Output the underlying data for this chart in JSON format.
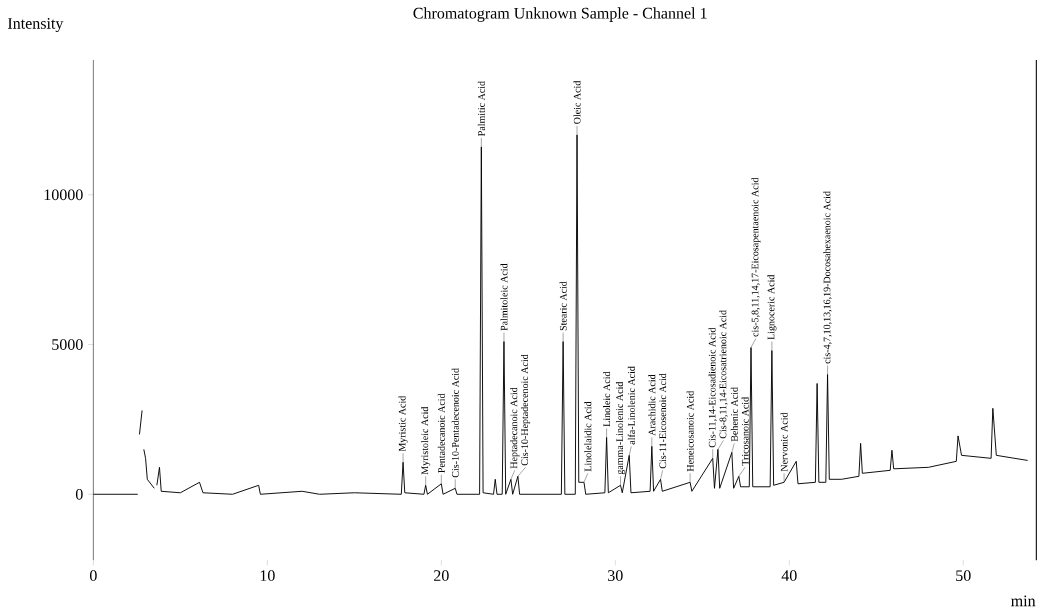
{
  "chart_data": {
    "type": "line",
    "title": "Chromatogram Unknown Sample - Channel 1",
    "xlabel": "min",
    "ylabel": "Intensity",
    "xlim": [
      0,
      54.2
    ],
    "ylim": [
      -2200,
      14500
    ],
    "xticks": [
      0,
      10,
      20,
      30,
      40,
      50
    ],
    "yticks": [
      0,
      5000,
      10000
    ],
    "line_style": "solid",
    "series": [
      {
        "color": "#000000",
        "x": [
          0,
          2.55,
          2.6,
          2.65,
          2.8,
          2.85,
          2.9,
          3.0,
          3.1,
          3.5,
          3.6,
          3.65,
          3.8,
          3.9,
          5,
          6.1,
          6.3,
          8,
          9.5,
          9.6,
          12,
          13,
          15,
          17.7,
          17.8,
          17.9,
          19.0,
          19.1,
          19.2,
          20.0,
          20.1,
          20.8,
          20.9,
          22.2,
          22.3,
          22.4,
          23.0,
          23.1,
          23.2,
          23.5,
          23.6,
          23.7,
          24.0,
          24.1,
          24.4,
          24.5,
          25.5,
          26.9,
          27.0,
          27.1,
          27.7,
          27.8,
          27.9,
          28.2,
          28.3,
          29.4,
          29.5,
          29.6,
          30.3,
          30.4,
          30.8,
          30.9,
          32.0,
          32.1,
          32.2,
          32.6,
          32.7,
          34.3,
          34.4,
          35.6,
          35.7,
          35.9,
          36.0,
          36.7,
          36.8,
          37.1,
          37.2,
          37.7,
          37.8,
          37.9,
          38.9,
          39.0,
          39.1,
          39.7,
          40.4,
          40.5,
          41.5,
          41.6,
          41.7,
          42.1,
          42.2,
          42.3,
          43,
          44.0,
          44.1,
          44.2,
          45.8,
          45.9,
          46.0,
          48,
          49.6,
          49.7,
          49.9,
          51.6,
          51.7,
          51.9,
          53.7
        ],
        "values": [
          0,
          0,
          null,
          2000,
          2800,
          null,
          1500,
          1200,
          500,
          200,
          null,
          300,
          900,
          100,
          50,
          400,
          50,
          0,
          300,
          0,
          100,
          0,
          50,
          0,
          1070,
          50,
          0,
          300,
          0,
          350,
          0,
          200,
          0,
          0,
          11600,
          50,
          0,
          500,
          0,
          0,
          5100,
          0,
          500,
          0,
          600,
          0,
          0,
          0,
          5100,
          0,
          0,
          12000,
          400,
          400,
          0,
          50,
          1900,
          50,
          300,
          50,
          1300,
          50,
          100,
          1600,
          100,
          500,
          100,
          400,
          100,
          1200,
          200,
          1500,
          200,
          1400,
          200,
          600,
          250,
          250,
          4900,
          250,
          250,
          4800,
          300,
          400,
          1100,
          350,
          400,
          3700,
          400,
          400,
          4000,
          500,
          500,
          600,
          1700,
          700,
          800,
          1470,
          850,
          900,
          1100,
          1950,
          1300,
          1200,
          2870,
          1300,
          1130
        ]
      }
    ],
    "annotations": [
      {
        "text": "Myristic Acid",
        "x": 17.8,
        "y": 1070
      },
      {
        "text": "Myristoleic Acid",
        "x": 19.1,
        "y": 300
      },
      {
        "text": "Pentadecanoic Acid",
        "x": 20.0,
        "y": 350
      },
      {
        "text": "Cis-10-Pentadecenoic Acid",
        "x": 20.8,
        "y": 200
      },
      {
        "text": "Palmitic Acid",
        "x": 22.3,
        "y": 11600
      },
      {
        "text": "Palmitoleic Acid",
        "x": 23.6,
        "y": 5100
      },
      {
        "text": "Heptadecanoic Acid",
        "x": 24.0,
        "y": 500
      },
      {
        "text": "Cis-10-Heptadecenoic Acid",
        "x": 24.4,
        "y": 600
      },
      {
        "text": "Stearic Acid",
        "x": 27.0,
        "y": 5100
      },
      {
        "text": "Oleic Acid",
        "x": 27.8,
        "y": 12000
      },
      {
        "text": "Linolelaidic Acid",
        "x": 28.2,
        "y": 400
      },
      {
        "text": "Linoleic Acid",
        "x": 29.5,
        "y": 1900
      },
      {
        "text": "gamma-Linolenic Acid",
        "x": 30.3,
        "y": 300
      },
      {
        "text": "alfa-Linolenic Acid",
        "x": 30.8,
        "y": 1300
      },
      {
        "text": "Arachidic Acid",
        "x": 32.1,
        "y": 1600
      },
      {
        "text": "Cis-11-Eicosenoic Acid",
        "x": 32.6,
        "y": 500
      },
      {
        "text": "Heneicosanoic Acid",
        "x": 34.3,
        "y": 400
      },
      {
        "text": "Cis-11,14-Eicosadienoic Acid",
        "x": 35.6,
        "y": 1200
      },
      {
        "text": "Cis-8,11,14-Eicosatrienoic Acid",
        "x": 35.9,
        "y": 1500
      },
      {
        "text": "Behenic Acid",
        "x": 36.7,
        "y": 1400
      },
      {
        "text": "Tricosanoic Acid",
        "x": 37.1,
        "y": 600
      },
      {
        "text": "cis-5,8,11,14,17-Eicosapentaenoic Acid",
        "x": 37.8,
        "y": 4900
      },
      {
        "text": "Lignoceric Acid",
        "x": 39.0,
        "y": 4800
      },
      {
        "text": "Nervonic Acid",
        "x": 39.7,
        "y": 400
      },
      {
        "text": "cis-4,7,10,13,16,19-Docosahexaenoic Acid",
        "x": 42.2,
        "y": 4000
      }
    ]
  }
}
